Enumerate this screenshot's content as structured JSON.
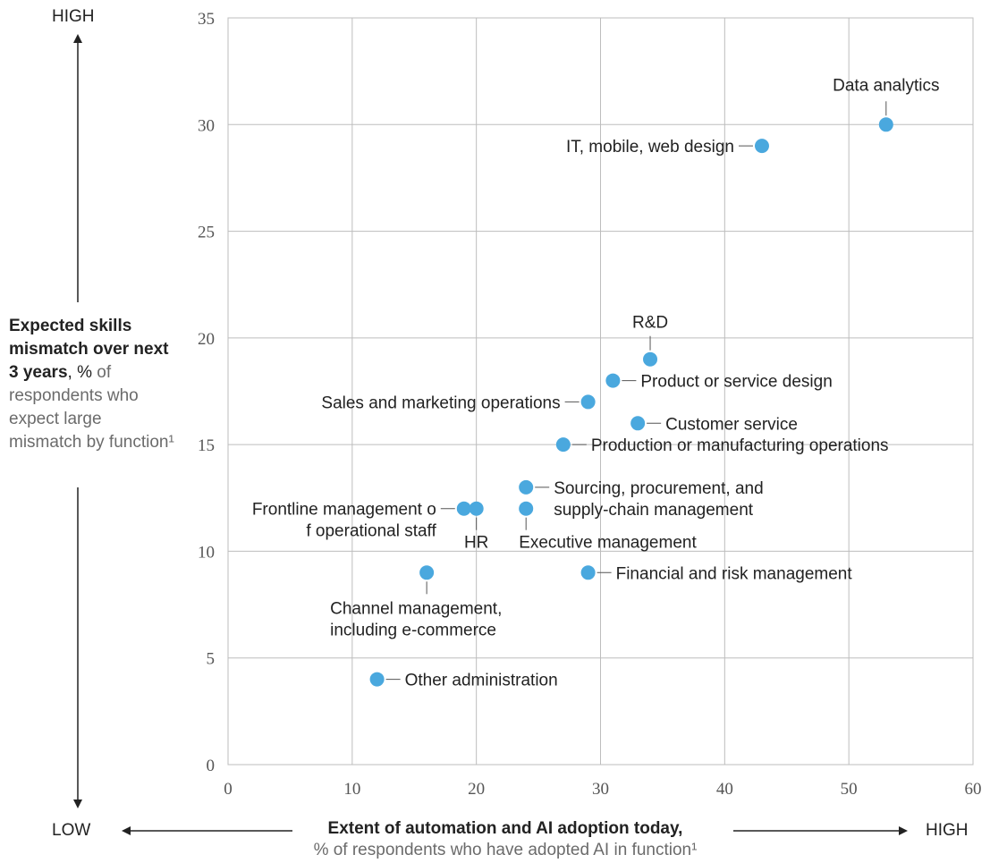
{
  "chart_data": {
    "type": "scatter",
    "xlim": [
      0,
      60
    ],
    "ylim": [
      0,
      35
    ],
    "x_ticks": [
      0,
      10,
      20,
      30,
      40,
      50,
      60
    ],
    "y_ticks": [
      0,
      5,
      10,
      15,
      20,
      25,
      30,
      35
    ],
    "grid": true,
    "marker_color": "#4aa8de",
    "points": [
      {
        "label": "Data analytics",
        "x": 53,
        "y": 30
      },
      {
        "label": "IT, mobile, web design",
        "x": 43,
        "y": 29
      },
      {
        "label": "R&D",
        "x": 34,
        "y": 19
      },
      {
        "label": "Product or service design",
        "x": 31,
        "y": 18
      },
      {
        "label": "Sales and marketing operations",
        "x": 29,
        "y": 17
      },
      {
        "label": "Customer service",
        "x": 33,
        "y": 16
      },
      {
        "label": "Production or manufacturing operations",
        "x": 27,
        "y": 15
      },
      {
        "label": "Sourcing, procurement, and supply-chain management",
        "x": 24,
        "y": 13
      },
      {
        "label": "Executive management",
        "x": 24,
        "y": 12
      },
      {
        "label": "Frontline management of operational staff",
        "x": 19,
        "y": 12
      },
      {
        "label": "HR",
        "x": 20,
        "y": 12
      },
      {
        "label": "Channel management, including e-commerce",
        "x": 16,
        "y": 9
      },
      {
        "label": "Financial and risk management",
        "x": 29,
        "y": 9
      },
      {
        "label": "Other administration",
        "x": 12,
        "y": 4
      }
    ],
    "y_axis": {
      "title_bold": "Expected skills mismatch over next 3 years",
      "title_sep": ", %",
      "title_light": "of respondents who expect large mismatch by function¹",
      "high_label": "HIGH",
      "low_label": "LOW"
    },
    "x_axis": {
      "title_bold": "Extent of automation and AI adoption today,",
      "title_light": "% of respondents who have adopted AI in function¹",
      "low_label": "LOW",
      "high_label": "HIGH"
    }
  }
}
